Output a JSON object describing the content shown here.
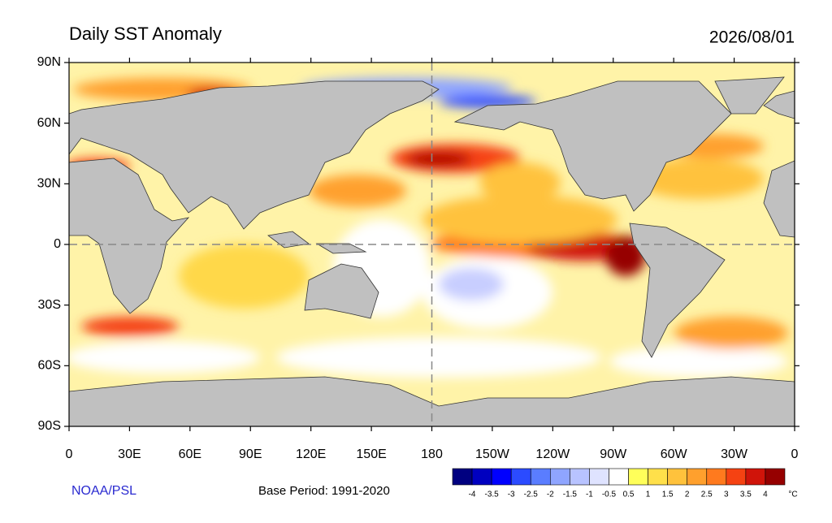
{
  "header": {
    "title": "Daily SST Anomaly",
    "date": "2026/08/01"
  },
  "map": {
    "lat_labels": [
      "90N",
      "60N",
      "30N",
      "0",
      "30S",
      "60S",
      "90S"
    ],
    "lon_labels": [
      "0",
      "30E",
      "60E",
      "90E",
      "120E",
      "150E",
      "180",
      "150W",
      "120W",
      "90W",
      "60W",
      "30W",
      "0"
    ]
  },
  "colorbar": {
    "colors": [
      "#000080",
      "#0000c0",
      "#0000ff",
      "#2b4bff",
      "#5a7dff",
      "#8fa5ff",
      "#b8c3ff",
      "#dfe3ff",
      "#ffffff",
      "#ffff5a",
      "#ffe04a",
      "#ffc23c",
      "#ffa02d",
      "#ff7a1e",
      "#f54212",
      "#d0140a",
      "#960000"
    ],
    "labels": [
      "-4",
      "-3.5",
      "-3",
      "-2.5",
      "-2",
      "-1.5",
      "-1",
      "-0.5",
      "0.5",
      "1",
      "1.5",
      "2",
      "2.5",
      "3",
      "3.5",
      "4"
    ],
    "unit": "°C"
  },
  "footer": {
    "credit": "NOAA/PSL",
    "base_period": "Base Period: 1991-2020"
  }
}
